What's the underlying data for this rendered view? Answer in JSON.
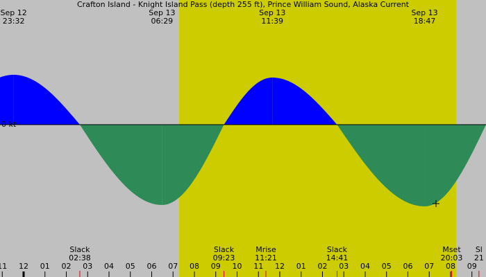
{
  "chart_data": {
    "type": "tide-current",
    "title": "Crafton Island - Knight Island Pass (depth 255 ft), Prince William Sound, Alaska Current",
    "zero_label": "0 kt",
    "xlim": [
      -1.106,
      21.66
    ],
    "ylim": [
      -3.2,
      2.8
    ],
    "daylight": [
      7.285,
      20.26
    ],
    "flood_color": "#0000ff",
    "ebb_color": "#2e8b57",
    "day_color": "#cccc00",
    "night_color": "#c0c0c0",
    "curve": {
      "x": [
        -0.467,
        2.633,
        6.483,
        9.383,
        11.65,
        14.683,
        18.783,
        21.66
      ],
      "values": [
        1.44,
        0,
        -2.32,
        0,
        1.36,
        0,
        -2.36,
        0
      ]
    },
    "peaks": [
      {
        "x": -0.467,
        "date": "Sep 12",
        "time": "23:32"
      },
      {
        "x": 6.483,
        "date": "Sep 13",
        "time": "06:29"
      },
      {
        "x": 11.65,
        "date": "Sep 13",
        "time": "11:39"
      },
      {
        "x": 18.783,
        "date": "Sep 13",
        "time": "18:47"
      }
    ],
    "events": [
      {
        "x": 2.633,
        "label": "Slack",
        "time": "02:38"
      },
      {
        "x": 9.383,
        "label": "Slack",
        "time": "09:23"
      },
      {
        "x": 11.35,
        "label": "Mrise",
        "time": "11:21"
      },
      {
        "x": 14.683,
        "label": "Slack",
        "time": "14:41"
      },
      {
        "x": 20.05,
        "label": "Mset",
        "time": "20:03"
      },
      {
        "x": 21.33,
        "label": "Sl",
        "time": "21"
      }
    ],
    "xticks": [
      {
        "value": -1,
        "label": "11"
      },
      {
        "value": 0,
        "label": "12"
      },
      {
        "value": 1,
        "label": "01"
      },
      {
        "value": 2,
        "label": "02"
      },
      {
        "value": 3,
        "label": "03"
      },
      {
        "value": 4,
        "label": "04"
      },
      {
        "value": 5,
        "label": "05"
      },
      {
        "value": 6,
        "label": "06"
      },
      {
        "value": 7,
        "label": "07"
      },
      {
        "value": 8,
        "label": "08"
      },
      {
        "value": 9,
        "label": "09"
      },
      {
        "value": 10,
        "label": "10"
      },
      {
        "value": 11,
        "label": "11"
      },
      {
        "value": 12,
        "label": "12"
      },
      {
        "value": 13,
        "label": "01"
      },
      {
        "value": 14,
        "label": "02"
      },
      {
        "value": 15,
        "label": "03"
      },
      {
        "value": 16,
        "label": "04"
      },
      {
        "value": 17,
        "label": "05"
      },
      {
        "value": 18,
        "label": "06"
      },
      {
        "value": 19,
        "label": "07"
      },
      {
        "value": 20,
        "label": "08"
      },
      {
        "value": 21,
        "label": "09"
      }
    ]
  }
}
